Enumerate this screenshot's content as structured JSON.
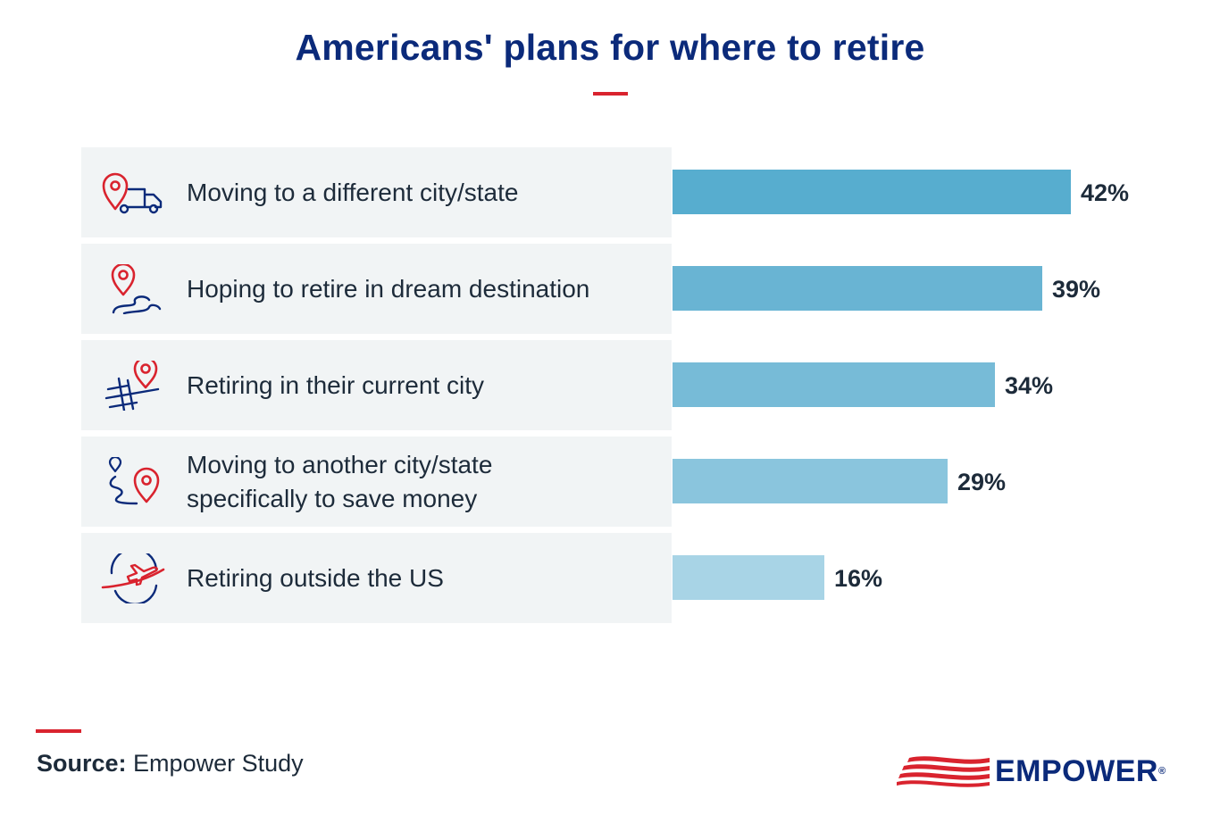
{
  "title": "Americans' plans for where to retire",
  "chart_data": {
    "type": "bar",
    "orientation": "horizontal",
    "title": "Americans' plans for where to retire",
    "categories": [
      "Moving to a different city/state",
      "Hoping to retire in dream destination",
      "Retiring in their current city",
      "Moving to another city/state specifically to save money",
      "Retiring outside the US"
    ],
    "category_lines": [
      [
        "Moving to a different city/state"
      ],
      [
        "Hoping to retire in dream destination"
      ],
      [
        "Retiring in their current city"
      ],
      [
        "Moving to another city/state",
        "specifically to save money"
      ],
      [
        "Retiring outside the US"
      ]
    ],
    "values": [
      42,
      39,
      34,
      29,
      16
    ],
    "value_labels": [
      "42%",
      "39%",
      "34%",
      "29%",
      "16%"
    ],
    "icons": [
      "pin-truck-icon",
      "pin-winding-road-icon",
      "pin-street-map-icon",
      "two-pins-route-icon",
      "globe-plane-icon"
    ],
    "bar_colors": [
      "#57adcf",
      "#69b4d3",
      "#77bbd7",
      "#8ac5dd",
      "#a8d4e6"
    ],
    "xlim": [
      0,
      42
    ],
    "grid": false,
    "legend": "none"
  },
  "source": {
    "label": "Source:",
    "text": "Empower Study"
  },
  "logo": {
    "text": "EMPOWER",
    "mark": "®"
  },
  "colors": {
    "title": "#0b2a7a",
    "accent": "#d9232e",
    "text": "#1d2b3a",
    "panel": "#f1f4f5"
  }
}
